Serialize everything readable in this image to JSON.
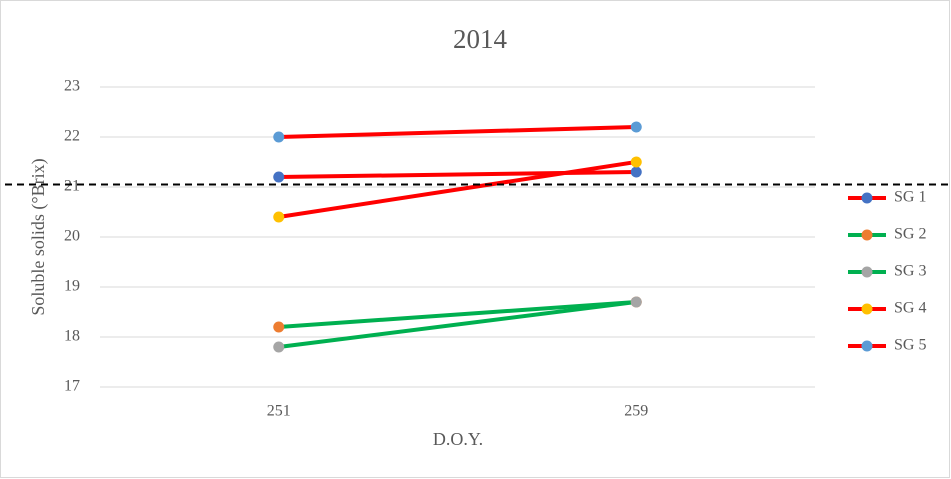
{
  "chart_data": {
    "type": "line",
    "title": "2014",
    "x_label": "D.O.Y.",
    "y_label": "Soluble solids (°Brix)",
    "categories": [
      "251",
      "259"
    ],
    "series": [
      {
        "name": "SG 1",
        "color": "#ff0000",
        "marker_color": "#4472c4",
        "values": [
          21.2,
          21.3
        ]
      },
      {
        "name": "SG 2",
        "color": "#00b050",
        "marker_color": "#ed7d31",
        "values": [
          18.2,
          18.7
        ]
      },
      {
        "name": "SG 3",
        "color": "#00b050",
        "marker_color": "#a5a5a5",
        "values": [
          17.8,
          18.7
        ]
      },
      {
        "name": "SG 4",
        "color": "#ff0000",
        "marker_color": "#ffc000",
        "values": [
          20.4,
          21.5
        ]
      },
      {
        "name": "SG 5",
        "color": "#ff0000",
        "marker_color": "#5b9bd5",
        "values": [
          22.0,
          22.2
        ]
      }
    ],
    "reference_line": 21.05,
    "ylim": [
      17,
      23
    ],
    "yticks": [
      17,
      18,
      19,
      20,
      21,
      22,
      23
    ],
    "grid": true,
    "legend": "right"
  }
}
